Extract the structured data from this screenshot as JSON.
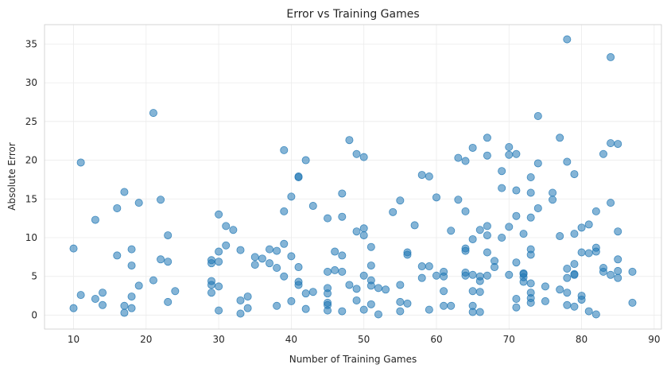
{
  "chart_data": {
    "type": "scatter",
    "title": "Error vs Training Games",
    "xlabel": "Number of Training Games",
    "ylabel": "Absolute Error",
    "xlim": [
      6,
      91
    ],
    "ylim": [
      -1.8,
      37.5
    ],
    "xticks": [
      "10",
      "20",
      "30",
      "40",
      "50",
      "60",
      "70",
      "80",
      "90"
    ],
    "yticks": [
      "0",
      "5",
      "10",
      "15",
      "20",
      "25",
      "30",
      "35"
    ],
    "grid": true,
    "color": "#1f77b4",
    "points": [
      [
        10,
        8.6
      ],
      [
        10,
        0.9
      ],
      [
        11,
        19.7
      ],
      [
        11,
        2.6
      ],
      [
        13,
        12.3
      ],
      [
        13,
        2.1
      ],
      [
        14,
        2.9
      ],
      [
        14,
        1.3
      ],
      [
        16,
        13.8
      ],
      [
        16,
        7.7
      ],
      [
        17,
        15.9
      ],
      [
        17,
        1.2
      ],
      [
        17,
        0.3
      ],
      [
        18,
        8.5
      ],
      [
        18,
        6.4
      ],
      [
        18,
        2.4
      ],
      [
        18,
        0.9
      ],
      [
        19,
        14.5
      ],
      [
        19,
        3.8
      ],
      [
        21,
        26.1
      ],
      [
        21,
        4.5
      ],
      [
        22,
        14.9
      ],
      [
        22,
        7.2
      ],
      [
        23,
        10.3
      ],
      [
        23,
        6.9
      ],
      [
        23,
        1.7
      ],
      [
        24,
        3.1
      ],
      [
        29,
        2.9
      ],
      [
        30,
        13.0
      ],
      [
        30,
        8.2
      ],
      [
        30,
        6.9
      ],
      [
        30,
        3.7
      ],
      [
        30,
        0.6
      ],
      [
        29,
        7.1
      ],
      [
        29,
        6.7
      ],
      [
        29,
        4.4
      ],
      [
        29,
        3.9
      ],
      [
        31,
        11.5
      ],
      [
        31,
        9.0
      ],
      [
        32,
        11.0
      ],
      [
        33,
        8.4
      ],
      [
        33,
        1.9
      ],
      [
        33,
        0.2
      ],
      [
        34,
        2.4
      ],
      [
        34,
        0.9
      ],
      [
        35,
        7.5
      ],
      [
        35,
        6.5
      ],
      [
        36,
        7.3
      ],
      [
        37,
        8.5
      ],
      [
        37,
        6.7
      ],
      [
        38,
        8.3
      ],
      [
        38,
        6.1
      ],
      [
        38,
        1.2
      ],
      [
        39,
        21.3
      ],
      [
        39,
        13.4
      ],
      [
        39,
        9.2
      ],
      [
        39,
        5.0
      ],
      [
        40,
        15.3
      ],
      [
        40,
        7.6
      ],
      [
        40,
        1.8
      ],
      [
        41,
        17.8
      ],
      [
        41,
        17.9
      ],
      [
        41,
        6.2
      ],
      [
        41,
        4.3
      ],
      [
        41,
        3.9
      ],
      [
        42,
        20.0
      ],
      [
        42,
        2.8
      ],
      [
        42,
        0.8
      ],
      [
        43,
        14.1
      ],
      [
        43,
        3.0
      ],
      [
        45,
        12.5
      ],
      [
        45,
        5.6
      ],
      [
        45,
        3.5
      ],
      [
        45,
        2.8
      ],
      [
        45,
        1.6
      ],
      [
        45,
        1.3
      ],
      [
        45,
        0.6
      ],
      [
        46,
        8.2
      ],
      [
        46,
        5.8
      ],
      [
        47,
        15.7
      ],
      [
        47,
        12.7
      ],
      [
        47,
        7.7
      ],
      [
        47,
        5.6
      ],
      [
        47,
        0.5
      ],
      [
        48,
        22.6
      ],
      [
        48,
        3.9
      ],
      [
        49,
        20.8
      ],
      [
        49,
        10.8
      ],
      [
        49,
        3.4
      ],
      [
        49,
        1.9
      ],
      [
        50,
        20.4
      ],
      [
        50,
        11.2
      ],
      [
        50,
        10.3
      ],
      [
        50,
        5.1
      ],
      [
        50,
        0.7
      ],
      [
        51,
        8.8
      ],
      [
        51,
        6.4
      ],
      [
        51,
        4.5
      ],
      [
        51,
        3.8
      ],
      [
        51,
        1.4
      ],
      [
        52,
        3.5
      ],
      [
        52,
        0.1
      ],
      [
        53,
        3.3
      ],
      [
        54,
        13.3
      ],
      [
        55,
        14.8
      ],
      [
        55,
        3.9
      ],
      [
        55,
        1.7
      ],
      [
        55,
        0.5
      ],
      [
        56,
        8.1
      ],
      [
        56,
        7.8
      ],
      [
        56,
        1.5
      ],
      [
        57,
        11.6
      ],
      [
        58,
        18.1
      ],
      [
        58,
        6.3
      ],
      [
        58,
        4.8
      ],
      [
        59,
        17.9
      ],
      [
        59,
        6.3
      ],
      [
        59,
        0.7
      ],
      [
        60,
        15.2
      ],
      [
        60,
        5.1
      ],
      [
        61,
        5.6
      ],
      [
        61,
        5.0
      ],
      [
        61,
        3.1
      ],
      [
        61,
        1.2
      ],
      [
        62,
        10.9
      ],
      [
        62,
        1.2
      ],
      [
        63,
        20.3
      ],
      [
        63,
        14.9
      ],
      [
        64,
        19.9
      ],
      [
        64,
        13.4
      ],
      [
        64,
        8.6
      ],
      [
        64,
        8.3
      ],
      [
        64,
        5.5
      ],
      [
        64,
        5.1
      ],
      [
        65,
        21.6
      ],
      [
        65,
        9.8
      ],
      [
        65,
        5.2
      ],
      [
        65,
        3.1
      ],
      [
        65,
        1.2
      ],
      [
        65,
        0.4
      ],
      [
        66,
        11.0
      ],
      [
        66,
        5.0
      ],
      [
        66,
        4.4
      ],
      [
        66,
        3.0
      ],
      [
        66,
        0.4
      ],
      [
        67,
        22.9
      ],
      [
        67,
        20.6
      ],
      [
        67,
        11.5
      ],
      [
        67,
        10.3
      ],
      [
        67,
        8.1
      ],
      [
        67,
        5.1
      ],
      [
        68,
        7.0
      ],
      [
        68,
        6.2
      ],
      [
        69,
        18.6
      ],
      [
        69,
        16.4
      ],
      [
        69,
        10.0
      ],
      [
        70,
        21.7
      ],
      [
        70,
        20.7
      ],
      [
        70,
        11.4
      ],
      [
        70,
        5.2
      ],
      [
        71,
        20.8
      ],
      [
        71,
        16.1
      ],
      [
        71,
        12.8
      ],
      [
        71,
        6.8
      ],
      [
        71,
        2.1
      ],
      [
        71,
        1.0
      ],
      [
        72,
        10.5
      ],
      [
        72,
        5.4
      ],
      [
        72,
        5.3
      ],
      [
        72,
        4.9
      ],
      [
        72,
        4.3
      ],
      [
        73,
        17.8
      ],
      [
        73,
        15.8
      ],
      [
        73,
        12.6
      ],
      [
        73,
        8.5
      ],
      [
        73,
        7.8
      ],
      [
        73,
        4.1
      ],
      [
        73,
        2.9
      ],
      [
        73,
        2.2
      ],
      [
        73,
        1.6
      ],
      [
        74,
        25.7
      ],
      [
        74,
        19.6
      ],
      [
        74,
        13.8
      ],
      [
        75,
        3.7
      ],
      [
        75,
        1.8
      ],
      [
        76,
        15.8
      ],
      [
        76,
        14.9
      ],
      [
        77,
        22.9
      ],
      [
        77,
        10.2
      ],
      [
        77,
        3.3
      ],
      [
        78,
        35.6
      ],
      [
        78,
        19.8
      ],
      [
        78,
        6.0
      ],
      [
        78,
        4.8
      ],
      [
        78,
        2.9
      ],
      [
        78,
        1.3
      ],
      [
        79,
        18.2
      ],
      [
        79,
        10.5
      ],
      [
        79,
        6.6
      ],
      [
        79,
        5.3
      ],
      [
        79,
        5.2
      ],
      [
        79,
        1.1
      ],
      [
        80,
        11.3
      ],
      [
        80,
        8.1
      ],
      [
        80,
        2.5
      ],
      [
        80,
        2.0
      ],
      [
        81,
        11.7
      ],
      [
        81,
        8.0
      ],
      [
        81,
        0.5
      ],
      [
        82,
        13.4
      ],
      [
        82,
        8.7
      ],
      [
        82,
        8.2
      ],
      [
        82,
        0.1
      ],
      [
        83,
        20.8
      ],
      [
        83,
        6.1
      ],
      [
        83,
        5.6
      ],
      [
        84,
        33.3
      ],
      [
        84,
        22.2
      ],
      [
        84,
        14.5
      ],
      [
        84,
        5.2
      ],
      [
        85,
        22.1
      ],
      [
        85,
        10.8
      ],
      [
        85,
        7.2
      ],
      [
        85,
        5.7
      ],
      [
        85,
        4.8
      ],
      [
        87,
        5.6
      ],
      [
        87,
        1.6
      ]
    ]
  }
}
